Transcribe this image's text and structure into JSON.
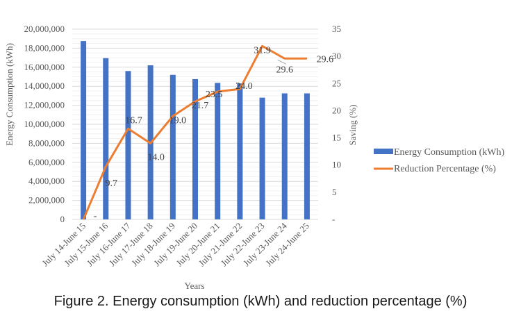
{
  "caption": "Figure 2. Energy consumption (kWh) and reduction percentage (%)",
  "chart_data": {
    "type": "bar",
    "combo": "bar+line (dual axis)",
    "title": "",
    "xlabel": "Years",
    "ylabel": "Energy Consumption (kWh)",
    "y2label": "Saving (%)",
    "ylim": [
      0,
      20000000
    ],
    "y2lim": [
      0,
      35
    ],
    "yticks": [
      "0",
      "2,000,000",
      "4,000,000",
      "6,000,000",
      "8,000,000",
      "10,000,000",
      "12,000,000",
      "14,000,000",
      "16,000,000",
      "18,000,000",
      "20,000,000"
    ],
    "y2ticks": [
      "-",
      "5",
      "10",
      "15",
      "20",
      "25",
      "30",
      "35"
    ],
    "grid": true,
    "legend_position": "right",
    "categories": [
      "July 14-June 15",
      "July 15-June 16",
      "July 16-June 17",
      "July 17-June 18",
      "July 18-June 19",
      "July 19-June 20",
      "July 20-June 21",
      "July 21-June 22",
      "July 22-June 23",
      "July 23-June 24",
      "July 24-June 25"
    ],
    "series": [
      {
        "name": "Energy Consumption (kWh)",
        "type": "bar",
        "axis": "left",
        "color": "#4472C4",
        "values": [
          18750000,
          16950000,
          15600000,
          16200000,
          15200000,
          14750000,
          14350000,
          14300000,
          12800000,
          13250000,
          13250000
        ]
      },
      {
        "name": "Reduction Percentage (%)",
        "type": "line",
        "axis": "right",
        "color": "#ED7D31",
        "values": [
          0,
          9.7,
          16.7,
          14.0,
          19.0,
          21.7,
          23.5,
          24.0,
          31.9,
          29.6,
          29.6
        ],
        "labels": [
          "-",
          "9.7",
          "16.7",
          "14.0",
          "19.0",
          "21.7",
          "23.5",
          "24.0",
          "31.9",
          "29.6",
          "29.6"
        ]
      }
    ]
  }
}
